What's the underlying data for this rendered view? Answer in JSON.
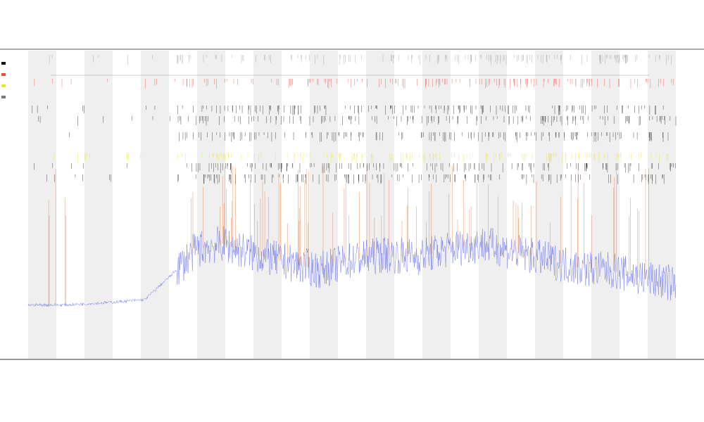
{
  "page": {
    "title": "",
    "subtitle_1": "",
    "subtitle_2": "",
    "x_axis_label": ""
  },
  "legend": [
    {
      "label": "",
      "color": "#111111"
    },
    {
      "label": "",
      "color": "#e8503a"
    },
    {
      "label": "",
      "color": "#e8e830"
    },
    {
      "label": "",
      "color": "#7a7a7a"
    }
  ],
  "colors": {
    "background_band": "#efefef",
    "grid_line": "#e6e6e6",
    "axis": "#333333",
    "trace_blue": "#5a63e6",
    "spike_orange": "#f07a3c",
    "event_red": "#ee4444",
    "event_black": "#111111",
    "event_yellow": "#e8e030",
    "event_gray": "#999999"
  },
  "chart_data": {
    "type": "line",
    "title": "",
    "xlabel": "",
    "ylabel": "",
    "x_count": 1200,
    "y_range": [
      0,
      1
    ],
    "band_count": 23,
    "baseline_profile": [
      [
        0.0,
        0.07
      ],
      [
        0.06,
        0.07
      ],
      [
        0.13,
        0.08
      ],
      [
        0.18,
        0.09
      ],
      [
        0.22,
        0.18
      ],
      [
        0.26,
        0.28
      ],
      [
        0.3,
        0.3
      ],
      [
        0.35,
        0.26
      ],
      [
        0.4,
        0.23
      ],
      [
        0.45,
        0.2
      ],
      [
        0.5,
        0.24
      ],
      [
        0.55,
        0.26
      ],
      [
        0.6,
        0.25
      ],
      [
        0.65,
        0.28
      ],
      [
        0.7,
        0.3
      ],
      [
        0.75,
        0.27
      ],
      [
        0.8,
        0.24
      ],
      [
        0.85,
        0.21
      ],
      [
        0.9,
        0.2
      ],
      [
        0.95,
        0.17
      ],
      [
        1.0,
        0.15
      ]
    ],
    "spike_rate": 0.08,
    "event_rows": [
      {
        "name": "",
        "color": "#999999"
      },
      {
        "name": "",
        "color": "#ee4444"
      },
      {
        "name": "",
        "color": "#111111"
      },
      {
        "name": "",
        "color": "#111111"
      },
      {
        "name": "",
        "color": "#111111"
      },
      {
        "name": "",
        "color": "#e8e030"
      },
      {
        "name": "",
        "color": "#111111"
      },
      {
        "name": "",
        "color": "#111111"
      }
    ],
    "grid": true,
    "legend_position": "top-left"
  }
}
